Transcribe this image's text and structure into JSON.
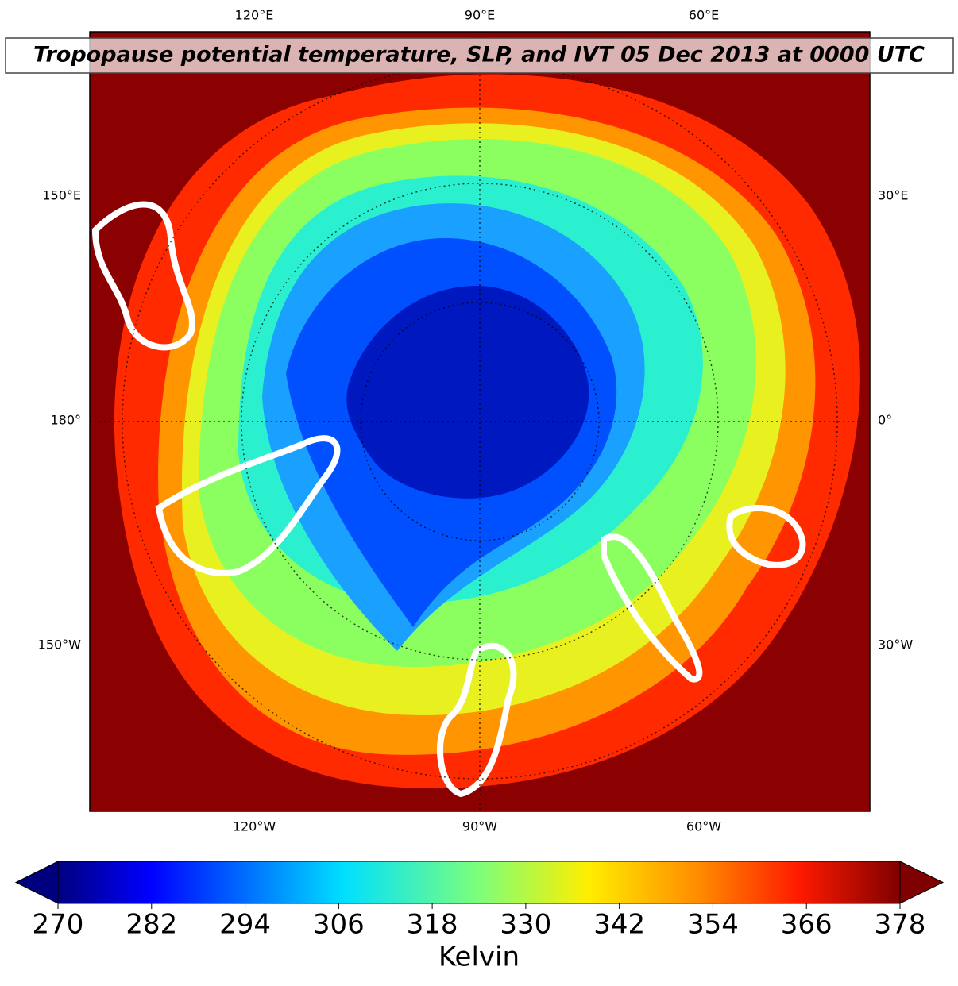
{
  "title": "Tropopause potential temperature, SLP, and IVT 05 Dec 2013 at 0000 UTC",
  "map": {
    "top_labels": [
      "120°E",
      "90°E",
      "60°E"
    ],
    "bottom_labels": [
      "120°W",
      "90°W",
      "60°W"
    ],
    "left_labels": [
      "150°E",
      "180°",
      "150°W"
    ],
    "right_labels": [
      "30°E",
      "0°",
      "30°W"
    ]
  },
  "colorbar": {
    "label": "Kelvin",
    "range": [
      270,
      378
    ],
    "ticks": [
      270,
      282,
      294,
      306,
      318,
      330,
      342,
      354,
      366,
      378
    ]
  }
}
